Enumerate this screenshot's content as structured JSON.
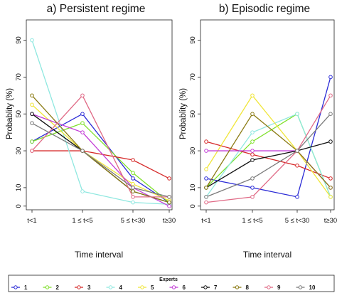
{
  "figure": {
    "experts_legend": {
      "title": "Experts",
      "entries": [
        {
          "name": "1",
          "color": "#2b2bd6"
        },
        {
          "name": "2",
          "color": "#7fe02a"
        },
        {
          "name": "3",
          "color": "#d62a2a"
        },
        {
          "name": "4",
          "color": "#8fe8e0"
        },
        {
          "name": "5",
          "color": "#f0e63a"
        },
        {
          "name": "6",
          "color": "#c23bd6"
        },
        {
          "name": "7",
          "color": "#111111"
        },
        {
          "name": "8",
          "color": "#8a7a12"
        },
        {
          "name": "9",
          "color": "#e06a86"
        },
        {
          "name": "10",
          "color": "#7a7a7a"
        }
      ]
    }
  },
  "chart_data": [
    {
      "type": "line",
      "title": "a) Persistent regime",
      "xlabel": "Time interval",
      "ylabel": "Probablity (%)",
      "categories": [
        "t<1",
        "1 ≤ t<5",
        "5 ≤ t<30",
        "t≥30"
      ],
      "yticks": [
        0,
        10,
        30,
        50,
        70,
        90
      ],
      "ylim": [
        -2,
        101
      ],
      "grid": false,
      "series": [
        {
          "name": "1",
          "values": [
            35,
            50,
            15,
            2
          ]
        },
        {
          "name": "2",
          "values": [
            35,
            45,
            18,
            2
          ]
        },
        {
          "name": "3",
          "values": [
            30,
            30,
            25,
            15
          ]
        },
        {
          "name": "4",
          "values": [
            90,
            8,
            2,
            1
          ]
        },
        {
          "name": "5",
          "values": [
            55,
            30,
            12,
            3
          ]
        },
        {
          "name": "6",
          "values": [
            50,
            40,
            10,
            0
          ]
        },
        {
          "name": "7",
          "values": [
            50,
            30,
            8,
            2
          ]
        },
        {
          "name": "8",
          "values": [
            60,
            30,
            8,
            2
          ]
        },
        {
          "name": "9",
          "values": [
            30,
            60,
            5,
            5
          ]
        },
        {
          "name": "10",
          "values": [
            45,
            30,
            10,
            5
          ]
        }
      ]
    },
    {
      "type": "line",
      "title": "b) Episodic regime",
      "xlabel": "Time interval",
      "ylabel": "Probablity (%)",
      "categories": [
        "t<1",
        "1 ≤ t<5",
        "5 ≤ t<30",
        "t≥30"
      ],
      "yticks": [
        0,
        10,
        30,
        50,
        70,
        90
      ],
      "ylim": [
        -2,
        101
      ],
      "grid": false,
      "series": [
        {
          "name": "1",
          "values": [
            15,
            10,
            5,
            70
          ]
        },
        {
          "name": "2",
          "values": [
            10,
            35,
            50,
            5
          ]
        },
        {
          "name": "3",
          "values": [
            35,
            28,
            22,
            15
          ]
        },
        {
          "name": "4",
          "values": [
            5,
            40,
            50,
            5
          ]
        },
        {
          "name": "5",
          "values": [
            20,
            60,
            30,
            5
          ]
        },
        {
          "name": "6",
          "values": [
            30,
            30,
            30,
            10
          ]
        },
        {
          "name": "7",
          "values": [
            10,
            25,
            30,
            35
          ]
        },
        {
          "name": "8",
          "values": [
            10,
            50,
            30,
            10
          ]
        },
        {
          "name": "9",
          "values": [
            2,
            5,
            30,
            60
          ]
        },
        {
          "name": "10",
          "values": [
            5,
            15,
            30,
            50
          ]
        }
      ]
    }
  ]
}
